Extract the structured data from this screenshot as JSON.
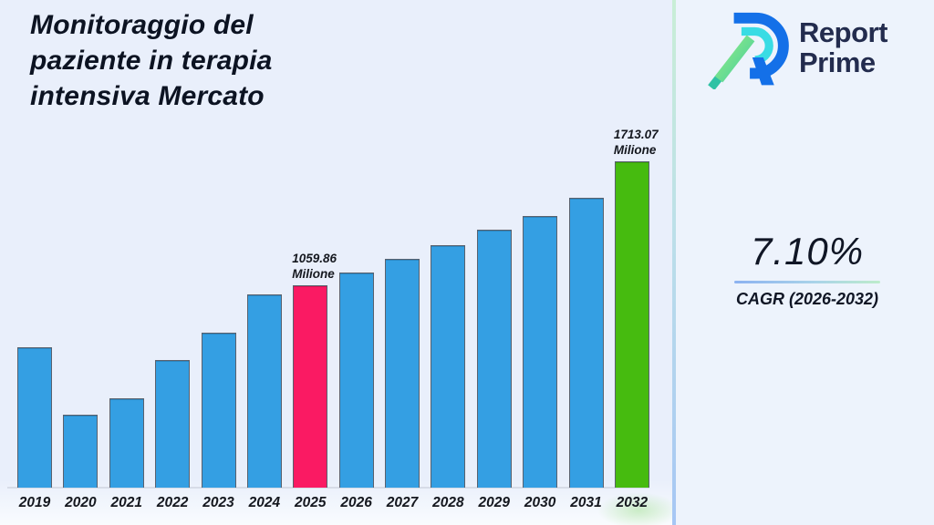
{
  "header": {
    "title_lines": [
      "Monitoraggio del",
      "paziente in terapia",
      "intensiva Mercato"
    ]
  },
  "logo": {
    "brand_line1": "Report",
    "brand_line2": "Prime"
  },
  "cagr": {
    "value": "7.10%",
    "label": "CAGR (2026-2032)"
  },
  "colors": {
    "background": "#e9effb",
    "right_panel": "#edf3fc",
    "bar_default": "#349fe3",
    "bar_highlight_2025": "#fa1a63",
    "bar_highlight_2032": "#46bb0f",
    "divider_top": "#c9eed6",
    "divider_bottom": "#a6c6f4",
    "logo_navy": "#232c4e"
  },
  "chart_data": {
    "type": "bar",
    "title": "Monitoraggio del paziente in terapia intensiva Mercato",
    "xlabel": "",
    "ylabel": "",
    "unit": "Milione",
    "categories": [
      "2019",
      "2020",
      "2021",
      "2022",
      "2023",
      "2024",
      "2025",
      "2026",
      "2027",
      "2028",
      "2029",
      "2030",
      "2031",
      "2032"
    ],
    "values": [
      738,
      381,
      467,
      672,
      815,
      1015,
      1059.86,
      1129,
      1201,
      1272,
      1353,
      1425,
      1520,
      1713.07
    ],
    "ylim": [
      0,
      1800
    ],
    "grid": false,
    "legend": false,
    "bar_color": "#349fe3",
    "highlight_colors": {
      "2025": "#fa1a63",
      "2032": "#46bb0f"
    },
    "annotations": [
      {
        "index": 6,
        "lines": [
          "1059.86",
          "Milione"
        ]
      },
      {
        "index": 13,
        "lines": [
          "1713.07",
          "Milione"
        ]
      }
    ]
  }
}
